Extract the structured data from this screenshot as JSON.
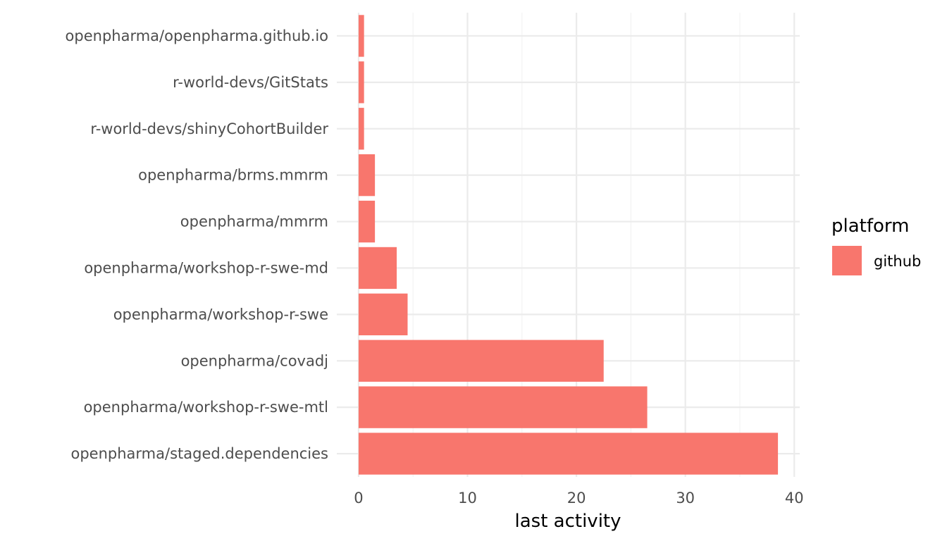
{
  "chart_data": {
    "type": "bar",
    "orientation": "horizontal",
    "categories": [
      "openpharma/openpharma.github.io",
      "r-world-devs/GitStats",
      "r-world-devs/shinyCohortBuilder",
      "openpharma/brms.mmrm",
      "openpharma/mmrm",
      "openpharma/workshop-r-swe-md",
      "openpharma/workshop-r-swe",
      "openpharma/covadj",
      "openpharma/workshop-r-swe-mtl",
      "openpharma/staged.dependencies"
    ],
    "series": [
      {
        "name": "github",
        "color": "#F8766D",
        "values": [
          0.5,
          0.5,
          0.5,
          1.5,
          1.5,
          3.5,
          4.5,
          22.5,
          26.5,
          38.5
        ]
      }
    ],
    "xlabel": "last activity",
    "ylabel": "",
    "xlim": [
      -2,
      40.5
    ],
    "xticks": [
      0,
      10,
      20,
      30,
      40
    ],
    "xtick_labels": [
      "0",
      "10",
      "20",
      "30",
      "40"
    ],
    "grid": true,
    "legend": {
      "title": "platform",
      "placement": "right",
      "entries": [
        {
          "label": "github",
          "color": "#F8766D"
        }
      ]
    }
  }
}
